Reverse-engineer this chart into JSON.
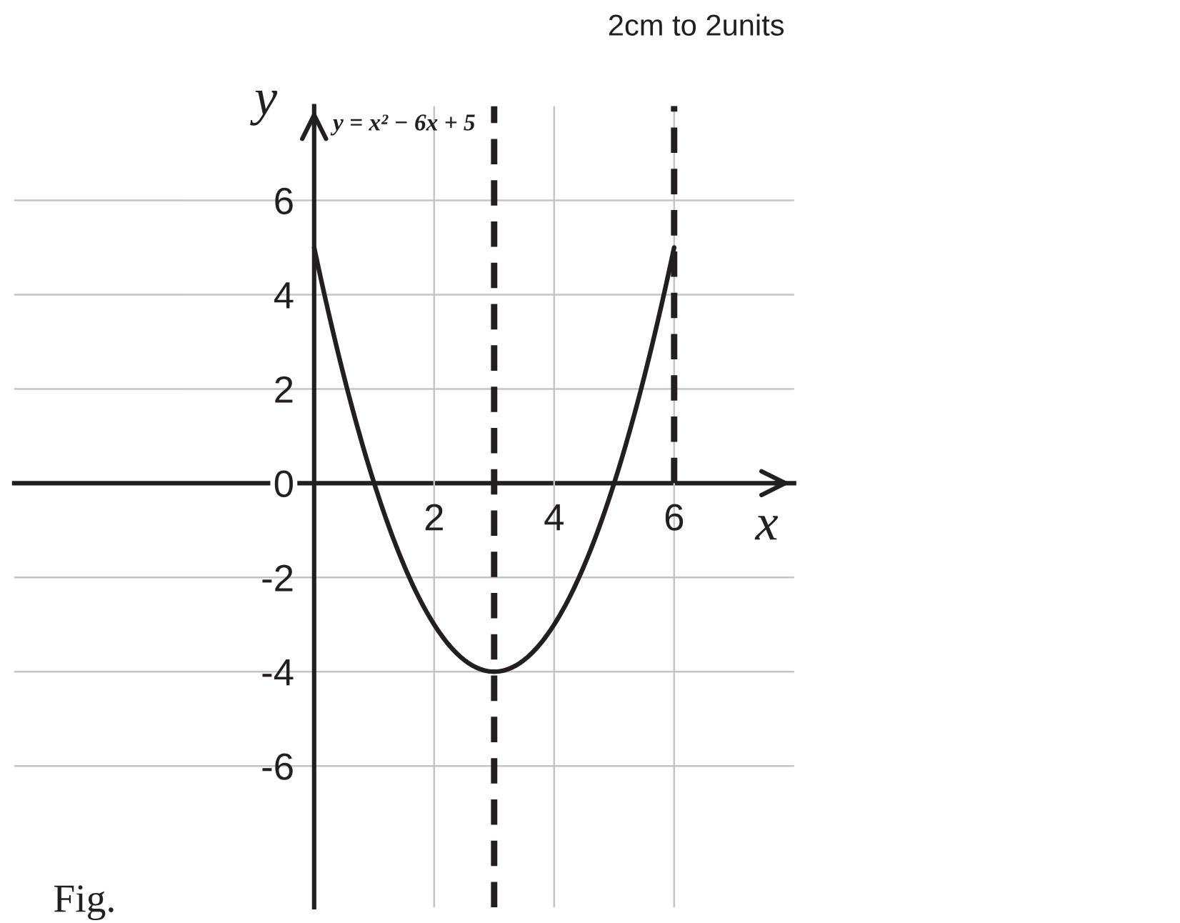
{
  "chart_data": {
    "type": "line",
    "title": "y = x² − 6x + 5",
    "xlabel": "x",
    "ylabel": "y",
    "annotations": [
      "2cm to 2units",
      "Fig."
    ],
    "series": [
      {
        "color": "#231f20",
        "x": [
          0,
          0.5,
          1,
          1.5,
          2,
          2.5,
          3,
          3.5,
          4,
          4.5,
          5,
          5.5,
          6
        ],
        "values": [
          5,
          2.25,
          0,
          -1.75,
          -3,
          -3.75,
          -4,
          -3.75,
          -3,
          -1.75,
          0,
          2.25,
          5
        ]
      },
      {
        "type": "line",
        "color": "#231f20",
        "line_style": "dashed",
        "x": [
          6,
          6
        ],
        "values": [
          0,
          8
        ]
      }
    ],
    "ref_lines": [
      {
        "axis": "x",
        "value": 3,
        "color": "#231f20",
        "line_style": "dashed"
      }
    ],
    "xlim": [
      -5,
      8
    ],
    "ylim": [
      -9,
      8
    ],
    "xticks": [
      2,
      4,
      6
    ],
    "yticks": [
      -6,
      -4,
      -2,
      0,
      2,
      4,
      6
    ],
    "grid": true,
    "line_style": "solid"
  }
}
